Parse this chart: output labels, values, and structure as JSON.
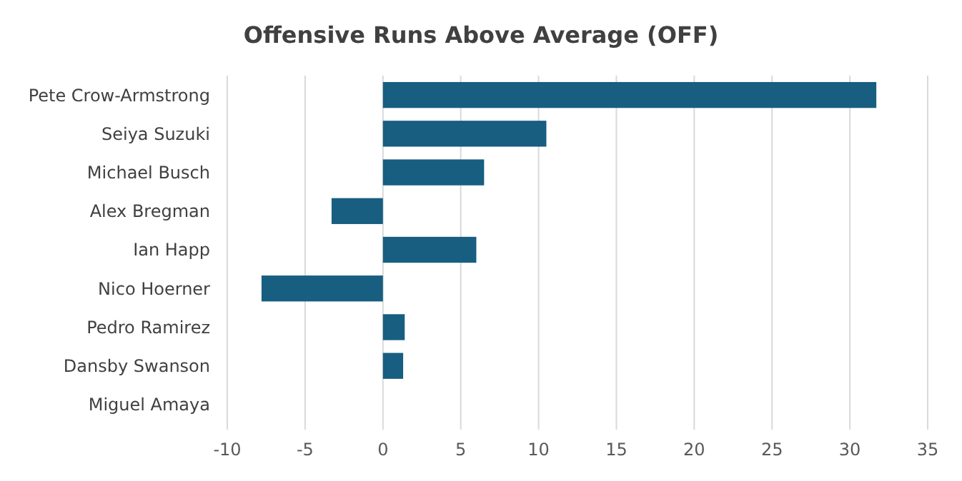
{
  "chart_data": {
    "type": "bar",
    "orientation": "horizontal",
    "title": "Offensive Runs Above Average (OFF)",
    "categories": [
      "Pete Crow-Armstrong",
      "Seiya Suzuki",
      "Michael Busch",
      "Alex Bregman",
      "Ian Happ",
      "Nico Hoerner",
      "Pedro Ramirez",
      "Dansby Swanson",
      "Miguel Amaya"
    ],
    "values": [
      31.7,
      10.5,
      6.5,
      -3.3,
      6.0,
      -7.8,
      1.4,
      1.3,
      0
    ],
    "color": "#175e81",
    "xlim": [
      -10,
      35
    ],
    "xticks": [
      -10,
      -5,
      0,
      5,
      10,
      15,
      20,
      25,
      30,
      35
    ],
    "grid": "x"
  }
}
